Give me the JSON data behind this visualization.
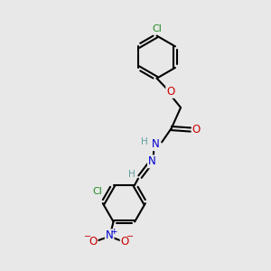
{
  "background_color": "#e8e8e8",
  "bond_color": "#000000",
  "atom_colors": {
    "C": "#000000",
    "H": "#5f9ea0",
    "N": "#0000cd",
    "O": "#cc0000",
    "Cl": "#228b22"
  },
  "figsize": [
    3.0,
    3.0
  ],
  "dpi": 100,
  "xlim": [
    0,
    10
  ],
  "ylim": [
    0,
    10
  ]
}
